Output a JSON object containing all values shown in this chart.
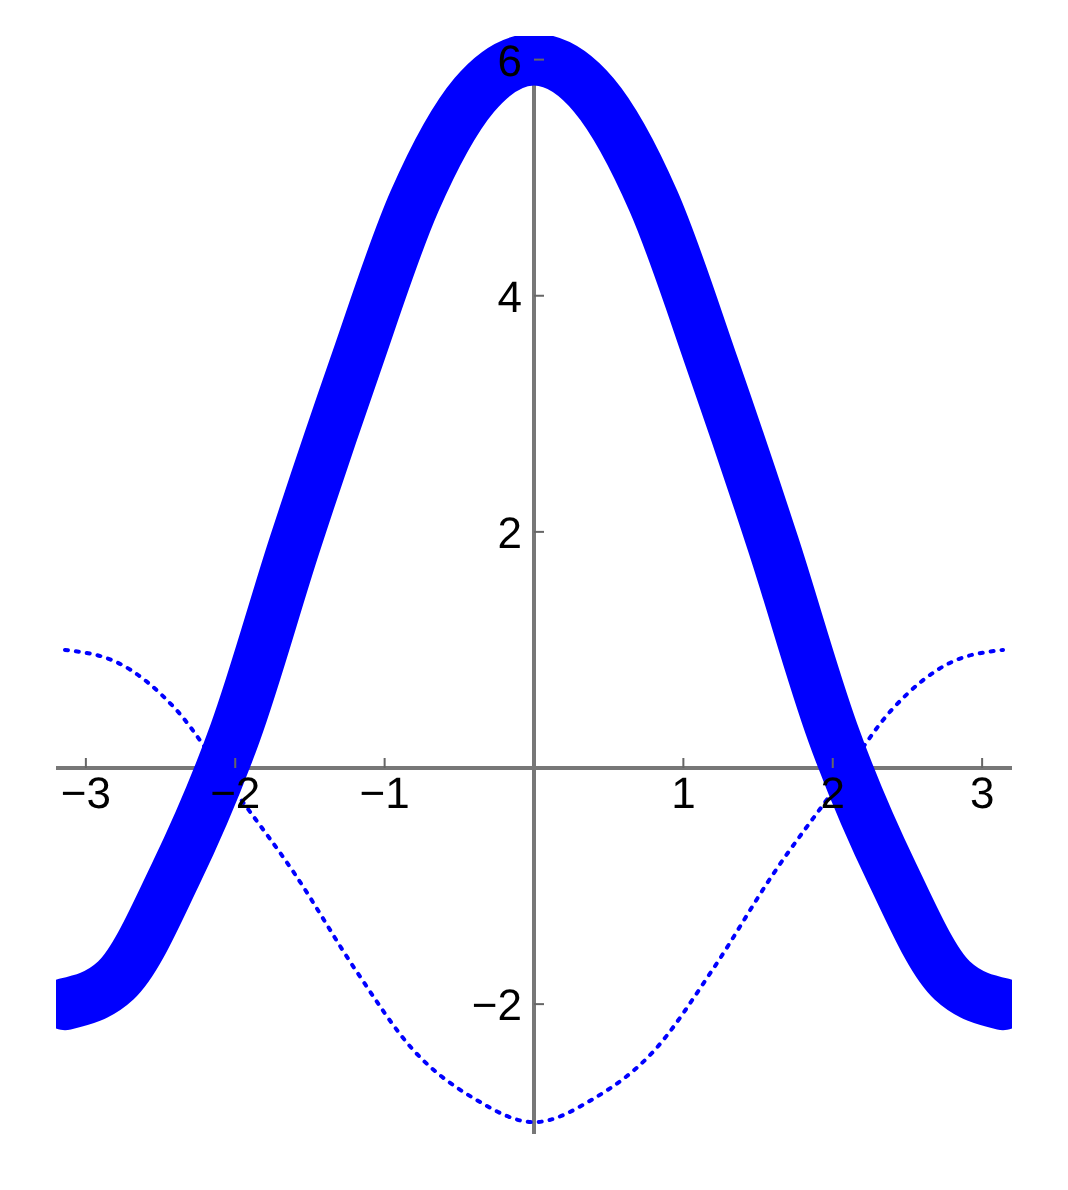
{
  "chart_data": {
    "type": "line",
    "x": [
      -3.14,
      -2.8,
      -2.4,
      -2.0,
      -1.6,
      -1.2,
      -0.8,
      -0.4,
      0,
      0.4,
      0.8,
      1.2,
      1.6,
      2.0,
      2.4,
      2.8,
      3.14
    ],
    "series": [
      {
        "color": "#0000ff",
        "line_style": "solid",
        "values": [
          -2,
          -1.8,
          -0.9,
          0.3,
          1.9,
          3.4,
          4.8,
          5.7,
          6,
          5.7,
          4.8,
          3.4,
          1.9,
          0.3,
          -0.9,
          -1.8,
          -2
        ]
      },
      {
        "color": "#0000ff",
        "line_style": "dotted",
        "values": [
          1,
          0.9,
          0.5,
          -0.2,
          -0.9,
          -1.7,
          -2.4,
          -2.8,
          -3,
          -2.8,
          -2.4,
          -1.7,
          -0.9,
          -0.2,
          0.5,
          0.9,
          1
        ]
      }
    ],
    "xlim": [
      -3.2,
      3.2
    ],
    "xticks": [
      -3,
      -2,
      -1,
      1,
      2,
      3
    ],
    "ylim": [
      -3.1,
      6.2
    ],
    "yticks": [
      -2,
      2,
      4,
      6
    ],
    "marker": "none"
  }
}
